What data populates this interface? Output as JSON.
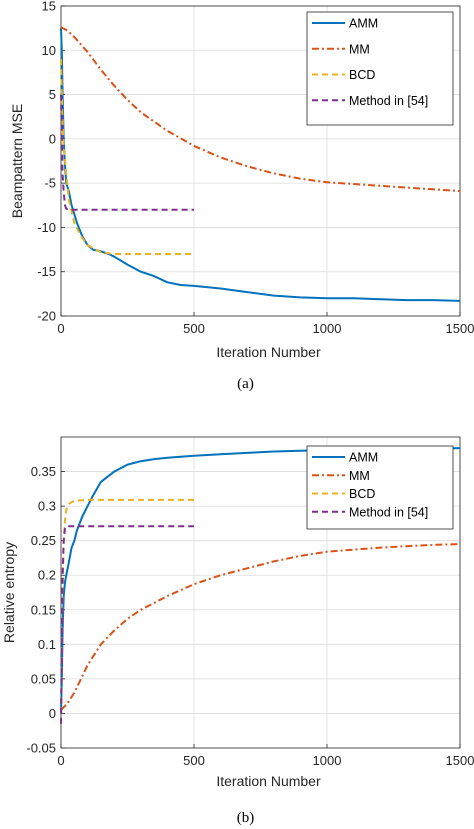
{
  "chart_data": [
    {
      "type": "line",
      "caption": "(a)",
      "xlabel": "Iteration Number",
      "ylabel": "Beampattern MSE",
      "xlim": [
        0,
        1500
      ],
      "ylim": [
        -20,
        15
      ],
      "xticks": [
        0,
        500,
        1000,
        1500
      ],
      "yticks": [
        -20,
        -15,
        -10,
        -5,
        0,
        5,
        10,
        15
      ],
      "grid": true,
      "legend_position": "top-right",
      "series": [
        {
          "name": "AMM",
          "color": "#0072bd",
          "style": "solid",
          "x": [
            0,
            3,
            6,
            10,
            15,
            20,
            25,
            30,
            40,
            50,
            60,
            80,
            100,
            120,
            150,
            180,
            200,
            250,
            300,
            350,
            400,
            450,
            500,
            600,
            700,
            800,
            900,
            1000,
            1100,
            1200,
            1300,
            1400,
            1500
          ],
          "y": [
            12.5,
            10,
            5,
            0,
            -3,
            -5,
            -5.5,
            -6,
            -7.5,
            -8.5,
            -9.5,
            -11,
            -12,
            -12.5,
            -12.7,
            -13,
            -13.3,
            -14.2,
            -15,
            -15.5,
            -16.2,
            -16.5,
            -16.6,
            -16.9,
            -17.3,
            -17.7,
            -17.9,
            -18.0,
            -18.0,
            -18.1,
            -18.2,
            -18.2,
            -18.3
          ]
        },
        {
          "name": "MM",
          "color": "#d95319",
          "style": "dashdot",
          "x": [
            0,
            25,
            50,
            100,
            150,
            200,
            250,
            300,
            400,
            500,
            600,
            700,
            800,
            900,
            1000,
            1100,
            1200,
            1300,
            1400,
            1500
          ],
          "y": [
            12.6,
            12.2,
            11.5,
            9.8,
            7.8,
            6.0,
            4.4,
            3.0,
            0.9,
            -0.8,
            -2.1,
            -3.1,
            -3.9,
            -4.5,
            -4.9,
            -5.1,
            -5.3,
            -5.5,
            -5.7,
            -5.9
          ]
        },
        {
          "name": "BCD",
          "color": "#edb120",
          "style": "dashed",
          "x": [
            0,
            5,
            10,
            20,
            30,
            50,
            75,
            100,
            150,
            200,
            300,
            400,
            500
          ],
          "y": [
            9,
            3,
            -1,
            -4,
            -7,
            -9.5,
            -11,
            -12,
            -12.8,
            -13,
            -13,
            -13,
            -13
          ]
        },
        {
          "name": "Method in [54]",
          "color": "#7e2f8e",
          "style": "dashed",
          "x": [
            0,
            3,
            6,
            10,
            15,
            20,
            30,
            500
          ],
          "y": [
            5,
            0,
            -4,
            -6,
            -7.5,
            -7.9,
            -8,
            -8
          ]
        }
      ]
    },
    {
      "type": "line",
      "caption": "(b)",
      "xlabel": "Iteration Number",
      "ylabel": "Relative entropy",
      "xlim": [
        0,
        1500
      ],
      "ylim": [
        -0.05,
        0.4
      ],
      "xticks": [
        0,
        500,
        1000,
        1500
      ],
      "yticks": [
        -0.05,
        0,
        0.05,
        0.1,
        0.15,
        0.2,
        0.25,
        0.3,
        0.35
      ],
      "grid": true,
      "legend_position": "top-right",
      "series": [
        {
          "name": "AMM",
          "color": "#0072bd",
          "style": "solid",
          "x": [
            0,
            3,
            6,
            10,
            15,
            20,
            30,
            40,
            50,
            60,
            80,
            100,
            120,
            150,
            200,
            250,
            300,
            350,
            400,
            500,
            600,
            700,
            800,
            900,
            1000,
            1100,
            1200,
            1300,
            1400,
            1500
          ],
          "y": [
            0.0,
            0.05,
            0.12,
            0.17,
            0.19,
            0.2,
            0.22,
            0.24,
            0.25,
            0.265,
            0.285,
            0.3,
            0.315,
            0.335,
            0.35,
            0.36,
            0.365,
            0.368,
            0.37,
            0.373,
            0.375,
            0.377,
            0.379,
            0.38,
            0.381,
            0.382,
            0.382,
            0.383,
            0.383,
            0.384
          ]
        },
        {
          "name": "MM",
          "color": "#d95319",
          "style": "dashdot",
          "x": [
            0,
            25,
            50,
            75,
            100,
            150,
            200,
            250,
            300,
            400,
            500,
            600,
            700,
            800,
            900,
            1000,
            1100,
            1200,
            1300,
            1400,
            1500
          ],
          "y": [
            0.005,
            0.015,
            0.03,
            0.05,
            0.07,
            0.1,
            0.12,
            0.137,
            0.15,
            0.17,
            0.187,
            0.2,
            0.21,
            0.22,
            0.228,
            0.234,
            0.237,
            0.24,
            0.242,
            0.244,
            0.245
          ]
        },
        {
          "name": "BCD",
          "color": "#edb120",
          "style": "dashed",
          "x": [
            0,
            5,
            10,
            15,
            20,
            30,
            40,
            60,
            100,
            200,
            300,
            400,
            500
          ],
          "y": [
            0.0,
            0.15,
            0.25,
            0.28,
            0.295,
            0.303,
            0.306,
            0.308,
            0.309,
            0.309,
            0.309,
            0.309,
            0.309
          ]
        },
        {
          "name": "Method in [54]",
          "color": "#7e2f8e",
          "style": "dashed",
          "x": [
            0,
            3,
            6,
            10,
            15,
            20,
            500
          ],
          "y": [
            -0.015,
            0.1,
            0.2,
            0.25,
            0.268,
            0.271,
            0.271
          ]
        }
      ]
    }
  ]
}
